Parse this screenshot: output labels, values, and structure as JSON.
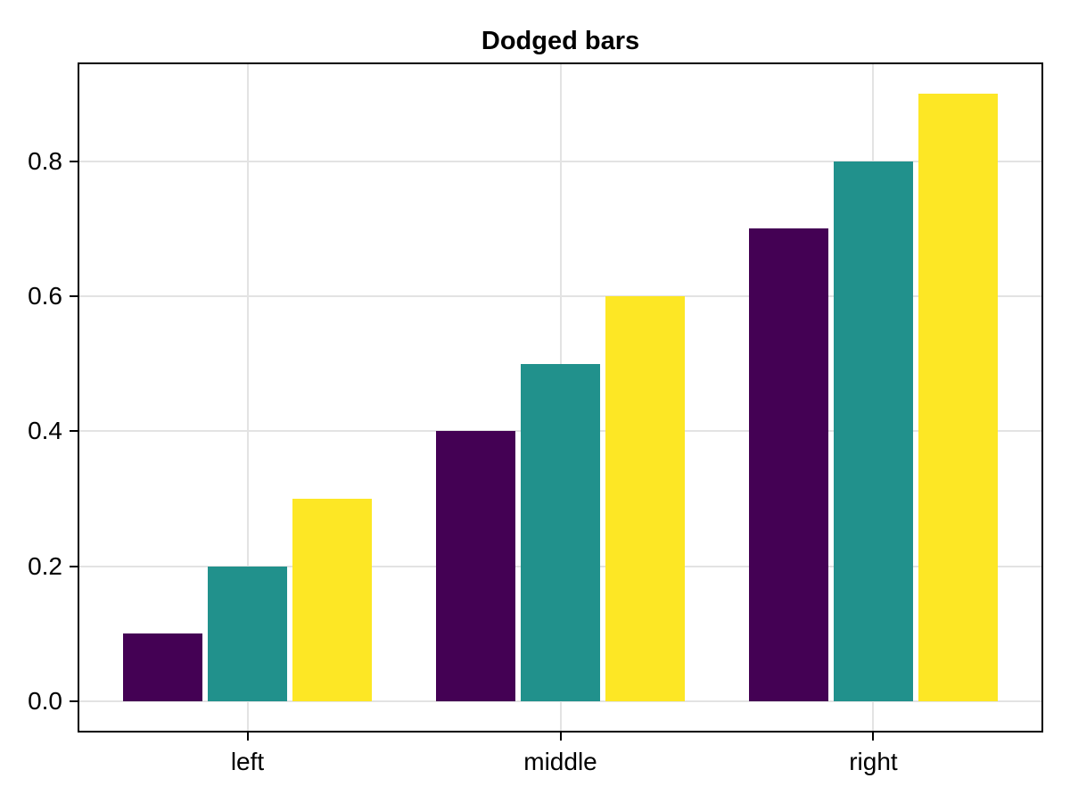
{
  "chart_data": {
    "type": "bar",
    "title": "Dodged bars",
    "categories": [
      "left",
      "middle",
      "right"
    ],
    "x_positions": [
      1,
      2,
      3
    ],
    "series": [
      {
        "color": "#440154",
        "values": [
          0.1,
          0.4,
          0.7
        ]
      },
      {
        "color": "#21918c",
        "values": [
          0.2,
          0.5,
          0.8
        ]
      },
      {
        "color": "#fde725",
        "values": [
          0.3,
          0.6,
          0.9
        ]
      }
    ],
    "yticks": [
      0,
      0.2,
      0.4,
      0.6,
      0.8
    ],
    "ytick_labels": [
      "0.0",
      "0.2",
      "0.4",
      "0.6",
      "0.8"
    ],
    "ylim": [
      -0.045,
      0.945
    ],
    "xlim": [
      0.46,
      3.54
    ],
    "grid": true,
    "legend": "none",
    "bar_width_units": 0.2536,
    "dodge_offset_units": 0.2712,
    "colors": {
      "grid": "#e3e3e3",
      "spine": "#000000",
      "text": "#000000",
      "background": "#ffffff"
    }
  }
}
